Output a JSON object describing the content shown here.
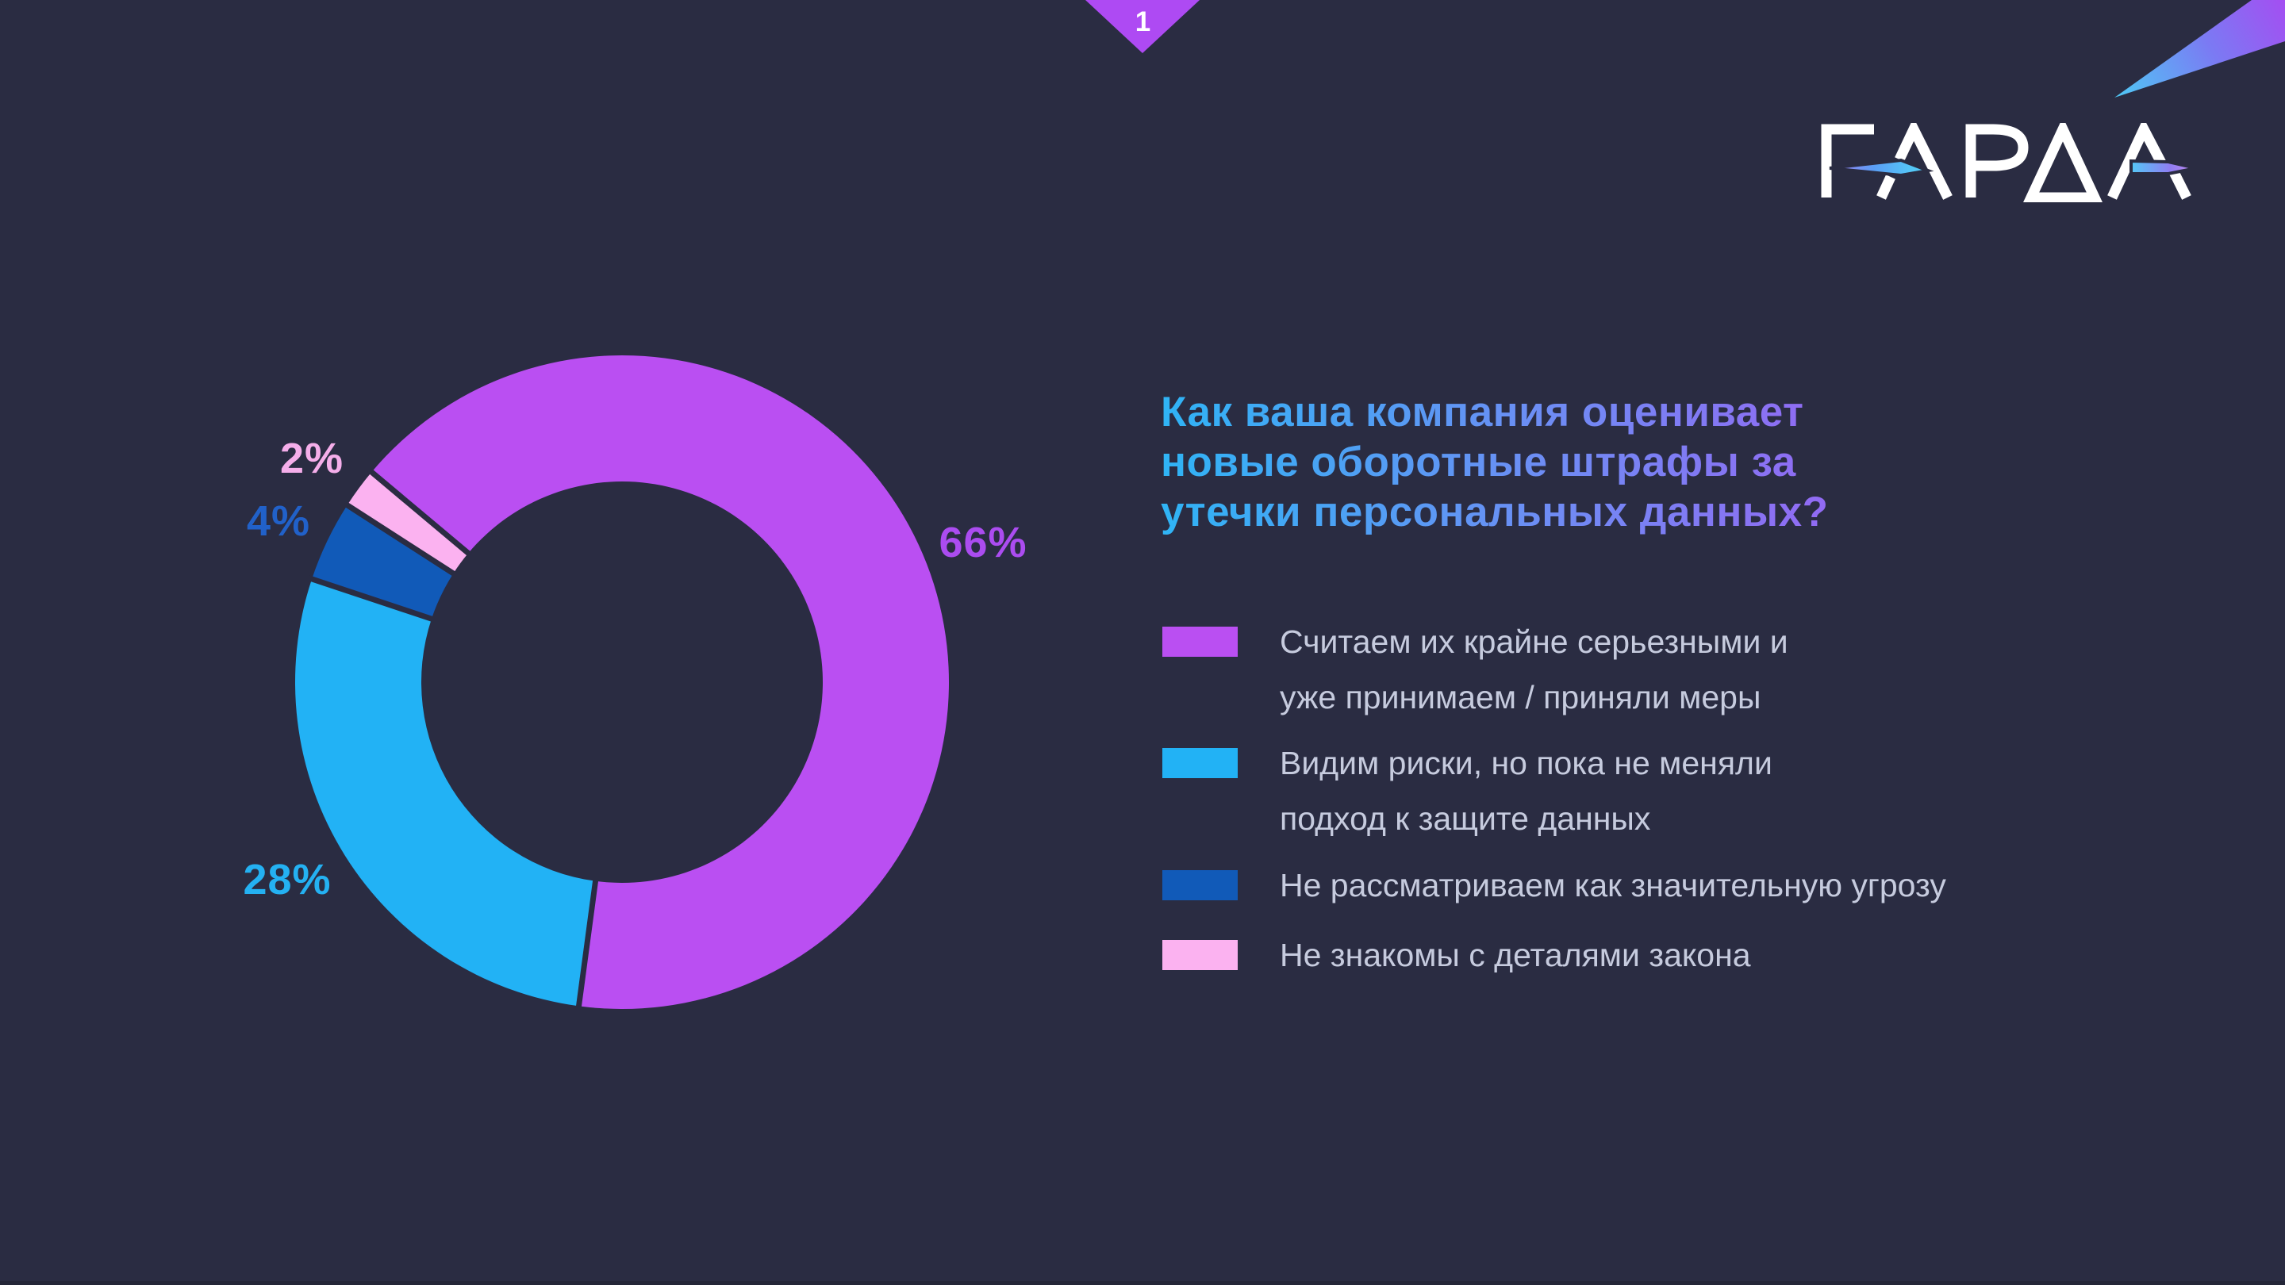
{
  "slide": {
    "page_number": "1"
  },
  "logo": {
    "text": "ГАРДА"
  },
  "title": {
    "lines": [
      "Как ваша компания оценивает",
      "новые оборотные штрафы за",
      "утечки персональных данных?"
    ]
  },
  "chart_data": {
    "type": "pie",
    "donut": true,
    "title": "Как ваша компания оценивает новые оборотные штрафы за утечки персональных данных?",
    "start_angle_deg": -50,
    "legend_position": "right",
    "categories": [
      "Считаем их крайне серьезными и уже принимаем / приняли меры",
      "Видим риски, но пока не меняли подход к защите данных",
      "Не рассматриваем как значительную угрозу",
      "Не знакомы с деталями закона"
    ],
    "values": [
      66,
      28,
      4,
      2
    ],
    "segments": [
      {
        "data_label": "66%",
        "value_pct": 66,
        "color": "#ba4ff2",
        "label_color": "#ab4cf0"
      },
      {
        "data_label": "28%",
        "value_pct": 28,
        "color": "#22b2f5",
        "label_color": "#24b1f2"
      },
      {
        "data_label": "4%",
        "value_pct": 4,
        "color": "#115ab8",
        "label_color": "#2161c9"
      },
      {
        "data_label": "2%",
        "value_pct": 2,
        "color": "#fbb2f0",
        "label_color": "#f5aeea"
      }
    ]
  },
  "legend": {
    "items": [
      {
        "color": "#ba4ff2",
        "lines": [
          "Считаем их крайне серьезными и",
          "уже принимаем / приняли меры"
        ]
      },
      {
        "color": "#22b2f5",
        "lines": [
          "Видим риски, но пока не меняли",
          "подход к защите данных"
        ]
      },
      {
        "color": "#115ab8",
        "lines": [
          "Не рассматриваем как значительную угрозу"
        ]
      },
      {
        "color": "#fbb2f0",
        "lines": [
          "Не знакомы с деталями закона"
        ]
      }
    ]
  },
  "colors": {
    "background": "#2a2c42",
    "title_gradient_start": "#2fb4f5",
    "title_gradient_end": "#a855f2",
    "legend_text": "#c6cbde",
    "page_marker": "#ae4af3",
    "comet_blue": "#4ec9f5",
    "comet_purple": "#a44ef2"
  }
}
